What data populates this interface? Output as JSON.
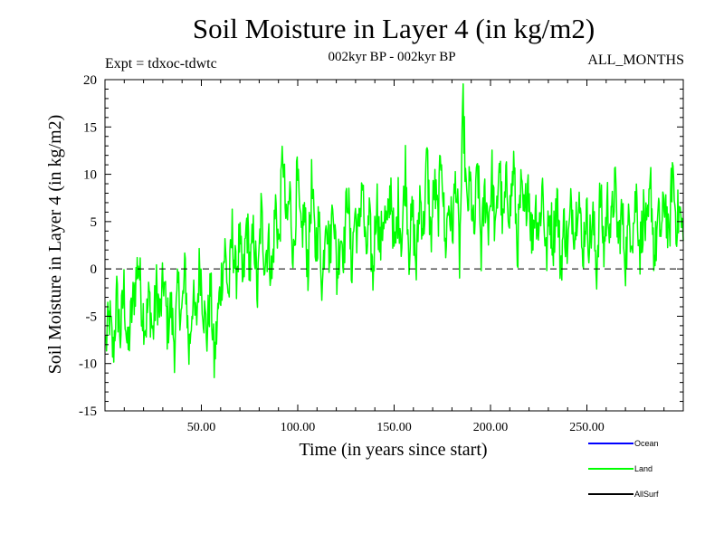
{
  "header": {
    "title": "Soil Moisture in Layer 4 (in kg/m2)",
    "expt": "Expt = tdxoc-tdwtc",
    "period": "002kyr BP - 002kyr BP",
    "months": "ALL_MONTHS"
  },
  "chart_data": {
    "type": "line",
    "title": "Soil Moisture in Layer 4 (in kg/m2)",
    "xlabel": "Time (in years since start)",
    "ylabel": "Soil Moisture in Layer 4 (in kg/m2)",
    "xlim": [
      0,
      300
    ],
    "ylim": [
      -15,
      20
    ],
    "x_ticks": [
      50,
      100,
      150,
      200,
      250
    ],
    "x_tick_labels": [
      "50.00",
      "100.00",
      "150.00",
      "200.00",
      "250.00"
    ],
    "y_ticks": [
      -15,
      -10,
      -5,
      0,
      5,
      10,
      15,
      20
    ],
    "y_tick_labels": [
      "-15",
      "-10",
      "-5",
      "0",
      "5",
      "10",
      "15",
      "20"
    ],
    "zero_line": "dashed",
    "grid": false,
    "legend_position": "bottom-right",
    "legend": [
      {
        "name": "Ocean",
        "color": "#0000ff"
      },
      {
        "name": "Land",
        "color": "#00ff00"
      },
      {
        "name": "AllSurf",
        "color": "#000000"
      }
    ],
    "series": [
      {
        "name": "Land",
        "color": "#00ff00",
        "x_start": 0.083,
        "x_step": 0.25,
        "sampled_values": [
          -8,
          -5,
          -9,
          -3,
          -7,
          -2,
          -9,
          -5,
          -2,
          1,
          -4,
          -6,
          -3,
          -7,
          -2,
          -5,
          -1,
          -6,
          -4,
          -8,
          -2,
          -5,
          0,
          -9,
          -3,
          -6,
          1,
          -4,
          -7,
          -2,
          -10,
          -5,
          -1,
          2,
          -3,
          4,
          -1,
          3,
          -2,
          5,
          0,
          4,
          -3,
          6,
          1,
          3,
          -1,
          7,
          2,
          13,
          4,
          8,
          1,
          10,
          3,
          6,
          0,
          9,
          2,
          5,
          -2,
          7,
          1,
          8,
          -1,
          4,
          2,
          9,
          0,
          6,
          3,
          10,
          1,
          5,
          -1,
          8,
          2,
          6,
          4,
          9,
          1,
          7,
          3,
          11,
          2,
          6,
          0,
          8,
          4,
          12,
          3,
          9,
          5,
          13,
          2,
          7,
          4,
          10,
          1,
          17,
          6,
          9,
          3,
          11,
          2,
          8,
          5,
          10,
          3,
          12,
          4,
          9,
          6,
          11,
          2,
          8,
          5,
          10,
          3,
          7,
          4,
          9,
          1,
          6,
          3,
          8,
          0,
          5,
          2,
          7,
          4,
          9,
          1,
          6,
          3,
          5,
          0,
          8,
          2,
          7,
          4,
          9,
          3,
          6,
          1,
          5,
          4,
          8,
          2,
          6,
          3,
          9,
          1,
          5,
          4,
          8,
          2,
          11,
          5,
          6,
          3
        ],
        "x_last": 300
      }
    ]
  }
}
